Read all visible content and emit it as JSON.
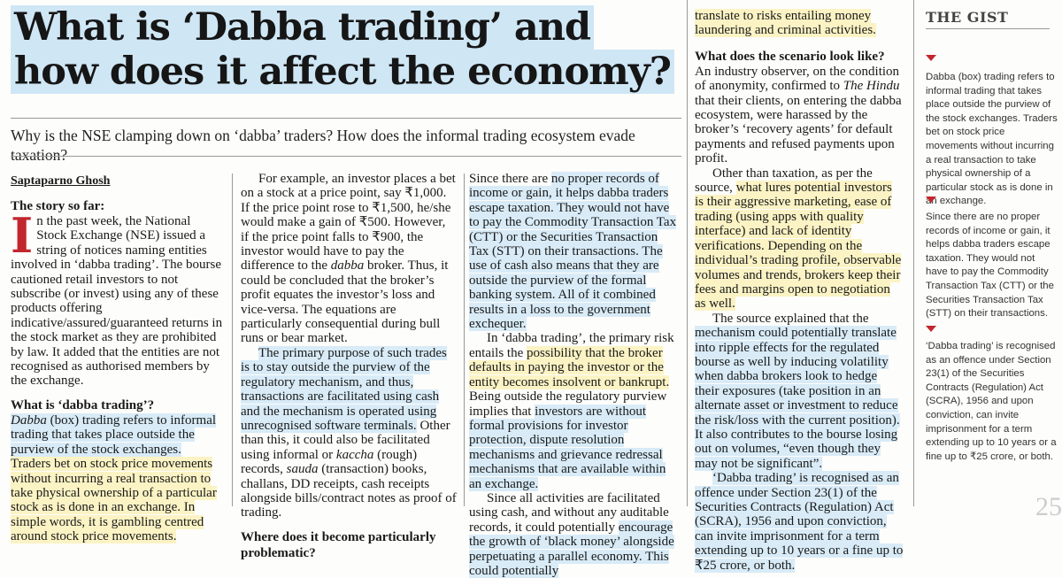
{
  "title_line1": "What is ‘Dabba trading’ and",
  "title_line2": "how does it affect the economy?",
  "subtitle": "Why is the NSE clamping down on ‘dabba’ traders? How does the informal trading ecosystem evade taxation?",
  "byline": "Saptaparno Ghosh",
  "col1": {
    "heading1": "The story so far:",
    "dropcap": "I",
    "p1": "n the past week, the National Stock Exchange (NSE) issued a string of notices naming entities involved in ‘dabba trading’. The bourse cautioned retail investors to not subscribe (or invest) using any of these products offering indicative/assured/guaranteed returns in the stock market as they are prohibited by law. It added that the entities are not recognised as authorised members by the exchange.",
    "heading2": "What is ‘dabba trading’?",
    "p2_a": "Dabba",
    "p2_b": " (box) trading refers to informal trading that takes place outside the purview of the stock exchanges.",
    "p2_c": " Traders bet on stock price movements without incurring a real transaction to take physical ownership of a particular stock as is done in an exchange. In simple words, it is gambling centred around stock price movements."
  },
  "col2": {
    "p1_a": "For example, an investor places a bet on a stock at a price point, say ₹1,000. If the price point rose to ₹1,500, he/she would make a gain of ₹500. However, if the price point falls to ₹900, the investor would have to pay the difference to the ",
    "p1_b": "dabba",
    "p1_c": " broker. Thus, it could be concluded that the broker’s profit equates the investor’s loss and vice-versa. The equations are particularly consequential during bull runs or bear market.",
    "p2_a": "The primary purpose of such trades is to stay outside the purview of the regulatory mechanism, and thus, transactions are facilitated using cash and the mechanism is operated using unrecognised software terminals.",
    "p2_b": " Other than this, it could also be facilitated using informal or ",
    "p2_c": "kaccha",
    "p2_d": " (rough) records, ",
    "p2_e": "sauda",
    "p2_f": " (transaction) books, challans, DD receipts, cash receipts alongside bills/contract notes as proof of trading.",
    "heading": "Where does it become particularly problematic?"
  },
  "col3": {
    "p1_a": "Since there are ",
    "p1_b": "no proper records of income or gain, it helps dabba traders escape taxation. They would not have to pay the Commodity Transaction Tax (CTT) or the Securities Transaction Tax (STT) on their transactions. The use of cash also means that they are outside the purview of the formal banking system. All of it combined results in a loss to the government exchequer.",
    "p2_a": "In ‘dabba trading’, the primary risk entails the ",
    "p2_b": "possibility that the broker defaults in paying the investor or the entity becomes insolvent or bankrupt.",
    "p2_c": " Being outside the regulatory purview implies that ",
    "p2_d": "investors are without formal provisions for investor protection, dispute resolution mechanisms and grievance redressal mechanisms that are available within an exchange.",
    "p3_a": "Since all activities are facilitated using cash, and without any auditable records, it could potentially ",
    "p3_b": "encourage the growth of ‘black money’ alongside perpetuating a parallel economy. This could potentially"
  },
  "col4": {
    "p0": "translate to risks entailing money laundering and criminal activities.",
    "heading": "What does the scenario look like?",
    "p1_a": "An industry observer, on the condition of anonymity, confirmed to ",
    "p1_b": "The Hindu",
    "p1_c": " that their clients, on entering the dabba ecosystem, were harassed by the broker’s ‘recovery agents’ for default payments and refused payments upon profit.",
    "p2_a": "Other than taxation, as per the source, ",
    "p2_b": "what lures potential investors is their aggressive marketing, ease of trading (using apps with quality interface) and lack of identity verifications. Depending on the individual’s trading profile, observable volumes and trends, brokers keep their fees and margins open to negotiation as well.",
    "p3_a": "The source explained that the ",
    "p3_b": "mechanism could potentially translate into ripple effects for the regulated bourse as well by inducing volatility when dabba brokers look to hedge their exposures (take position in an alternate asset or investment to reduce the risk/loss with the current position). It also contributes to the bourse losing out on volumes, “even though they may not be significant”.",
    "p4_a": "‘Dabba trading’ is recognised as an offence under Section 23(1) of the Securities Contracts (Regulation) Act (SCRA), 1956 and upon conviction, can invite imprisonment for a term extending up to 10 years or a fine up to ₹25 crore, or both."
  },
  "gist": {
    "title": "THE GIST",
    "item1": "Dabba (box) trading refers to informal trading that takes place outside the purview of the stock exchanges. Traders bet on stock price movements without incurring a real transaction to take physical ownership of a particular stock as is done in an exchange.",
    "item2": "Since there are no proper records of income or gain, it helps dabba traders escape taxation. They would not have to pay the Commodity Transaction Tax (CTT) or the Securities Transaction Tax (STT) on their transactions.",
    "item3": "‘Dabba trading’ is recognised as an offence under Section 23(1) of the Securities Contracts (Regulation) Act (SCRA), 1956 and upon conviction, can invite imprisonment for a term extending up to 10 years or a fine up to ₹25 crore, or both."
  },
  "page_fragment": "25"
}
